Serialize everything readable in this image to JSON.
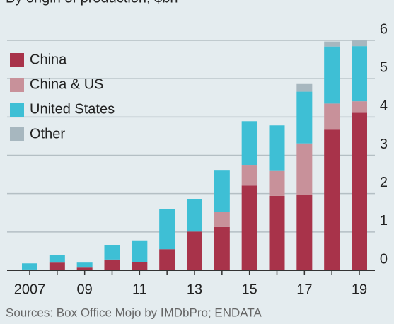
{
  "chart_data": {
    "type": "stacked_bar",
    "subtitle": "By origin of production, $bn",
    "source": "Sources: Box Office Mojo by IMDbPro; ENDATA",
    "categories": [
      "2007",
      null,
      "09",
      null,
      "11",
      null,
      "13",
      null,
      "15",
      null,
      "17",
      null,
      "19"
    ],
    "series": [
      {
        "name": "China",
        "color": "#a8334a",
        "values": [
          0.02,
          0.2,
          0.07,
          0.28,
          0.22,
          0.55,
          1.01,
          1.13,
          2.21,
          1.94,
          1.96,
          3.67,
          4.11
        ]
      },
      {
        "name": "China & US",
        "color": "#c8919a",
        "values": [
          0,
          0,
          0,
          0,
          0,
          0,
          0,
          0.39,
          0.54,
          0.65,
          1.35,
          0.68,
          0.3
        ]
      },
      {
        "name": "United States",
        "color": "#3ebfd5",
        "values": [
          0.16,
          0.19,
          0.13,
          0.38,
          0.56,
          1.04,
          0.85,
          1.08,
          1.14,
          1.19,
          1.35,
          1.49,
          1.44
        ]
      },
      {
        "name": "Other",
        "color": "#a7b7bf",
        "values": [
          0,
          0,
          0,
          0,
          0,
          0,
          0,
          0,
          0,
          0,
          0.2,
          0.13,
          0.15
        ]
      }
    ],
    "ylim": [
      0,
      6
    ],
    "yticks": [
      0,
      1,
      2,
      3,
      4,
      5,
      6
    ],
    "grid": true,
    "legend": "top-left"
  }
}
